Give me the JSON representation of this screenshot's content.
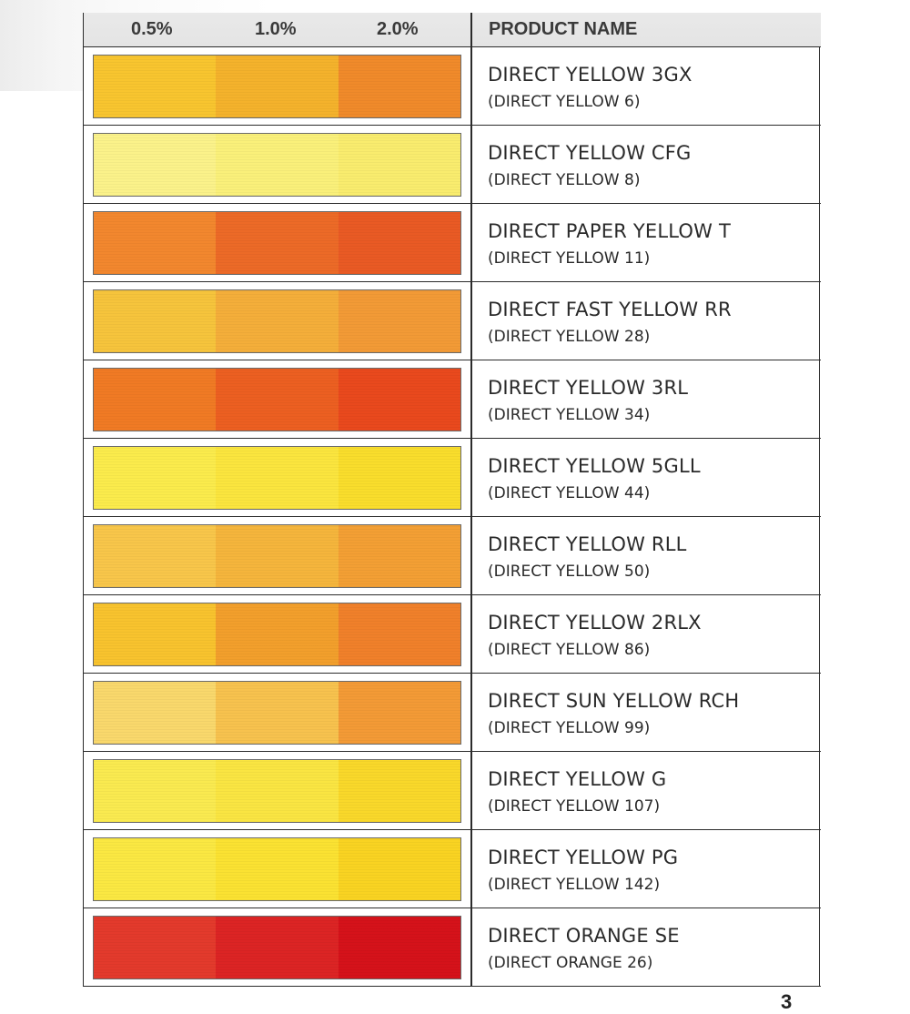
{
  "header": {
    "concentrations": [
      "0.5%",
      "1.0%",
      "2.0%"
    ],
    "product_name_label": "PRODUCT NAME"
  },
  "products": [
    {
      "name": "DIRECT YELLOW 3GX",
      "code": "(DIRECT YELLOW 6)",
      "colors": [
        "#f8c52f",
        "#f4b22c",
        "#f08a2a"
      ]
    },
    {
      "name": "DIRECT YELLOW CFG",
      "code": "(DIRECT YELLOW 8)",
      "colors": [
        "#fbf28a",
        "#faf07a",
        "#f9ec6e"
      ]
    },
    {
      "name": "DIRECT PAPER YELLOW T",
      "code": "(DIRECT YELLOW 11)",
      "colors": [
        "#f2872e",
        "#ec6a27",
        "#e95a24"
      ]
    },
    {
      "name": "DIRECT FAST YELLOW RR",
      "code": "(DIRECT YELLOW 28)",
      "colors": [
        "#f6c43c",
        "#f4ae3a",
        "#f29a36"
      ]
    },
    {
      "name": "DIRECT YELLOW 3RL",
      "code": "(DIRECT YELLOW 34)",
      "colors": [
        "#f07a24",
        "#ec5f21",
        "#e9491d"
      ]
    },
    {
      "name": "DIRECT YELLOW 5GLL",
      "code": "(DIRECT YELLOW 44)",
      "colors": [
        "#fbeb4c",
        "#fbe53e",
        "#f9dd2c"
      ]
    },
    {
      "name": "DIRECT YELLOW RLL",
      "code": "(DIRECT YELLOW 50)",
      "colors": [
        "#f8c64a",
        "#f5b53c",
        "#f39f34"
      ]
    },
    {
      "name": "DIRECT YELLOW 2RLX",
      "code": "(DIRECT YELLOW 86)",
      "colors": [
        "#f8c32e",
        "#f29f2c",
        "#f0802a"
      ]
    },
    {
      "name": "DIRECT SUN YELLOW RCH",
      "code": "(DIRECT YELLOW 99)",
      "colors": [
        "#f9d86c",
        "#f7c24e",
        "#f39a36"
      ]
    },
    {
      "name": "DIRECT YELLOW G",
      "code": "(DIRECT YELLOW 107)",
      "colors": [
        "#faea50",
        "#fae542",
        "#f9d82a"
      ]
    },
    {
      "name": "DIRECT YELLOW PG",
      "code": "(DIRECT YELLOW 142)",
      "colors": [
        "#fbe842",
        "#fbe232",
        "#f9d322"
      ]
    },
    {
      "name": "DIRECT ORANGE SE",
      "code": "(DIRECT ORANGE 26)",
      "colors": [
        "#e33a2c",
        "#dc2424",
        "#d5121a"
      ]
    }
  ],
  "page_number": "3"
}
